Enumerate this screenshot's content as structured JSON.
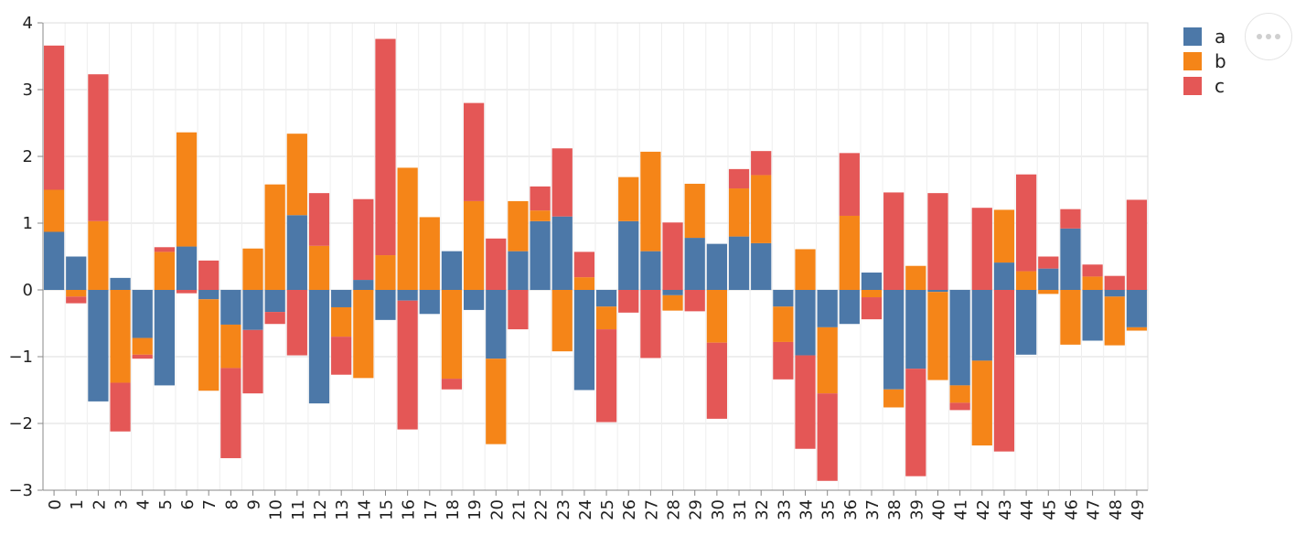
{
  "chart_data": {
    "type": "bar",
    "stacked": true,
    "categories": [
      "0",
      "1",
      "2",
      "3",
      "4",
      "5",
      "6",
      "7",
      "8",
      "9",
      "10",
      "11",
      "12",
      "13",
      "14",
      "15",
      "16",
      "17",
      "18",
      "19",
      "20",
      "21",
      "22",
      "23",
      "24",
      "25",
      "26",
      "27",
      "28",
      "29",
      "30",
      "31",
      "32",
      "33",
      "34",
      "35",
      "36",
      "37",
      "38",
      "39",
      "40",
      "41",
      "42",
      "43",
      "44",
      "45",
      "46",
      "47",
      "48",
      "49"
    ],
    "series": [
      {
        "name": "a",
        "color": "#4c78a8",
        "values": [
          0.87,
          0.5,
          -1.67,
          0.18,
          -0.72,
          -1.43,
          0.65,
          -0.14,
          -0.52,
          -0.6,
          -0.33,
          1.12,
          -1.7,
          -0.26,
          0.15,
          -0.45,
          -0.16,
          -0.36,
          0.58,
          -0.3,
          -1.03,
          0.58,
          1.03,
          1.1,
          -1.5,
          -0.25,
          1.03,
          0.58,
          -0.08,
          0.78,
          0.69,
          0.8,
          0.7,
          -0.25,
          -0.98,
          -0.56,
          -0.51,
          0.26,
          -1.49,
          -1.18,
          -0.03,
          -1.43,
          -1.06,
          0.41,
          -0.97,
          0.32,
          0.92,
          -0.76,
          -0.1,
          -0.56
        ]
      },
      {
        "name": "b",
        "color": "#f58518",
        "values": [
          0.63,
          -0.1,
          1.03,
          -1.39,
          -0.25,
          0.57,
          1.71,
          -1.37,
          -0.65,
          0.62,
          1.58,
          1.22,
          0.66,
          -0.44,
          -1.32,
          0.52,
          1.83,
          1.09,
          -1.33,
          1.33,
          -1.28,
          0.75,
          0.16,
          -0.92,
          0.19,
          -0.34,
          0.66,
          1.49,
          -0.23,
          0.81,
          -0.79,
          0.72,
          1.02,
          -0.53,
          0.61,
          -0.99,
          1.11,
          -0.11,
          -0.27,
          0.36,
          -1.32,
          -0.26,
          -1.27,
          0.79,
          0.28,
          -0.06,
          -0.82,
          0.2,
          -0.73,
          -0.05
        ]
      },
      {
        "name": "c",
        "color": "#e45756",
        "values": [
          2.16,
          -0.1,
          2.2,
          -0.73,
          -0.06,
          0.07,
          -0.05,
          0.44,
          -1.35,
          -0.95,
          -0.18,
          -0.98,
          0.79,
          -0.57,
          1.21,
          3.24,
          -1.93,
          0.0,
          -0.16,
          1.47,
          0.77,
          -0.59,
          0.36,
          1.02,
          0.38,
          -1.39,
          -0.34,
          -1.02,
          1.01,
          -0.32,
          -1.14,
          0.29,
          0.36,
          -0.56,
          -1.4,
          -1.31,
          0.94,
          -0.33,
          1.46,
          -1.61,
          1.45,
          -0.11,
          1.23,
          -2.42,
          1.45,
          0.18,
          0.29,
          0.18,
          0.21,
          1.35
        ]
      }
    ],
    "ylim": [
      -3,
      4
    ],
    "yticks": [
      "−3",
      "−2",
      "−1",
      "0",
      "1",
      "2",
      "3",
      "4"
    ],
    "grid": true,
    "legend_position": "top-right",
    "title": "",
    "xlabel": "",
    "ylabel": ""
  },
  "legend": {
    "items": [
      {
        "label": "a",
        "color": "#4c78a8"
      },
      {
        "label": "b",
        "color": "#f58518"
      },
      {
        "label": "c",
        "color": "#e45756"
      }
    ]
  },
  "menu": {
    "icon": "more-horizontal-icon"
  }
}
